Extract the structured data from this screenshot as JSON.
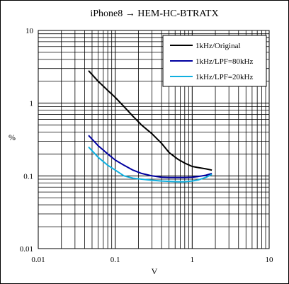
{
  "chart_data": {
    "type": "line",
    "title": "iPhone8 → HEM-HC-BTRATX",
    "xlabel": "V",
    "ylabel": "%",
    "xscale": "log",
    "yscale": "log",
    "xlim": [
      0.01,
      10
    ],
    "ylim": [
      0.01,
      10
    ],
    "x_ticks": [
      "0.01",
      "0.1",
      "1",
      "10"
    ],
    "y_ticks": [
      "10",
      "1",
      "0.1",
      "0.01"
    ],
    "grid": true,
    "legend_position": "top-right",
    "series": [
      {
        "name": "1kHz/Original",
        "color": "#000000",
        "x": [
          0.045,
          0.06,
          0.08,
          0.1,
          0.13,
          0.17,
          0.22,
          0.3,
          0.4,
          0.5,
          0.65,
          0.8,
          1.0,
          1.2,
          1.5,
          1.8
        ],
        "y": [
          2.8,
          2.0,
          1.5,
          1.2,
          0.9,
          0.66,
          0.5,
          0.38,
          0.28,
          0.21,
          0.17,
          0.15,
          0.135,
          0.13,
          0.125,
          0.12
        ]
      },
      {
        "name": "1kHz/LPF=80kHz",
        "color": "#0000a0",
        "x": [
          0.045,
          0.06,
          0.08,
          0.1,
          0.13,
          0.17,
          0.22,
          0.3,
          0.4,
          0.5,
          0.65,
          0.8,
          1.0,
          1.2,
          1.5,
          1.8
        ],
        "y": [
          0.36,
          0.26,
          0.2,
          0.165,
          0.14,
          0.12,
          0.108,
          0.1,
          0.096,
          0.095,
          0.095,
          0.095,
          0.096,
          0.098,
          0.102,
          0.108
        ]
      },
      {
        "name": "1kHz/LPF=20kHz",
        "color": "#10b0e0",
        "x": [
          0.045,
          0.06,
          0.08,
          0.1,
          0.13,
          0.17,
          0.22,
          0.3,
          0.4,
          0.5,
          0.65,
          0.8,
          1.0,
          1.2,
          1.5,
          1.8
        ],
        "y": [
          0.25,
          0.18,
          0.14,
          0.12,
          0.1,
          0.093,
          0.09,
          0.087,
          0.085,
          0.084,
          0.083,
          0.083,
          0.085,
          0.088,
          0.095,
          0.105
        ]
      }
    ]
  }
}
